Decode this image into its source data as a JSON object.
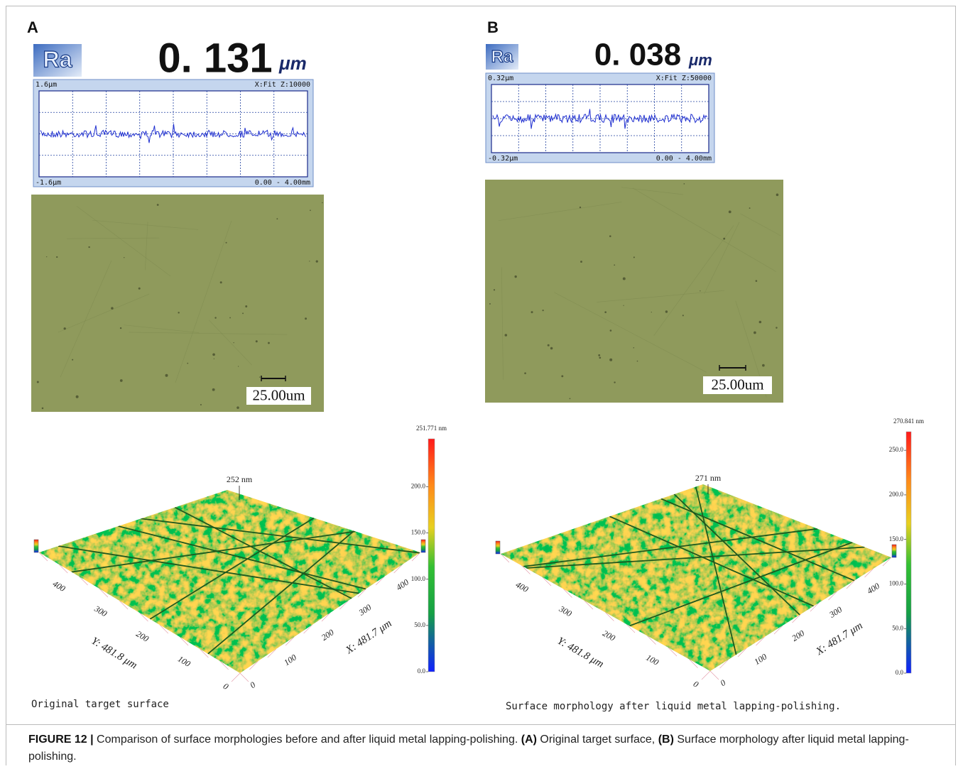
{
  "panels": [
    {
      "label": "A",
      "ra": {
        "symbol": "Ra",
        "value": "0. 131",
        "unit": "μm"
      },
      "profile": {
        "top_left": "1.6μm",
        "top_right": "X:Fit Z:10000",
        "bottom_left": "-1.6μm",
        "bottom_right": "0.00 - 4.00mm"
      },
      "scale_bar": "25.00um",
      "surface": {
        "max_label": "251.771 nm",
        "colorbar_ticks": [
          "200.0",
          "150.0",
          "100.0",
          "50.0",
          "0.0"
        ],
        "peak_label": "252 nm",
        "y_axis_label": "Y: 481.8 μm",
        "x_axis_label": "X: 481.7 μm",
        "y_ticks": [
          "400",
          "300",
          "200",
          "100",
          "0"
        ],
        "x_ticks": [
          "0",
          "100",
          "200",
          "300",
          "400"
        ]
      },
      "caption": "Original target surface"
    },
    {
      "label": "B",
      "ra": {
        "symbol": "Ra",
        "value": "0. 038",
        "unit": "μm"
      },
      "profile": {
        "top_left": "0.32μm",
        "top_right": "X:Fit Z:50000",
        "bottom_left": "-0.32μm",
        "bottom_right": "0.00 - 4.00mm"
      },
      "scale_bar": "25.00um",
      "surface": {
        "max_label": "270.841 nm",
        "colorbar_ticks": [
          "250.0",
          "200.0",
          "150.0",
          "100.0",
          "50.0",
          "0.0"
        ],
        "peak_label": "271 nm",
        "y_axis_label": "Y: 481.8 μm",
        "x_axis_label": "X: 481.7 μm",
        "y_ticks": [
          "400",
          "300",
          "200",
          "100",
          "0"
        ],
        "x_ticks": [
          "0",
          "100",
          "200",
          "300",
          "400"
        ]
      },
      "caption": "Surface morphology after liquid metal lapping-polishing."
    }
  ],
  "figure_caption": {
    "label": "FIGURE 12 |",
    "text": " Comparison of surface morphologies before and after liquid metal lapping-polishing. ",
    "a_marker": "(A)",
    "a_text": " Original target surface, ",
    "b_marker": "(B)",
    "b_text": " Surface morphology after liquid metal lapping-polishing."
  }
}
